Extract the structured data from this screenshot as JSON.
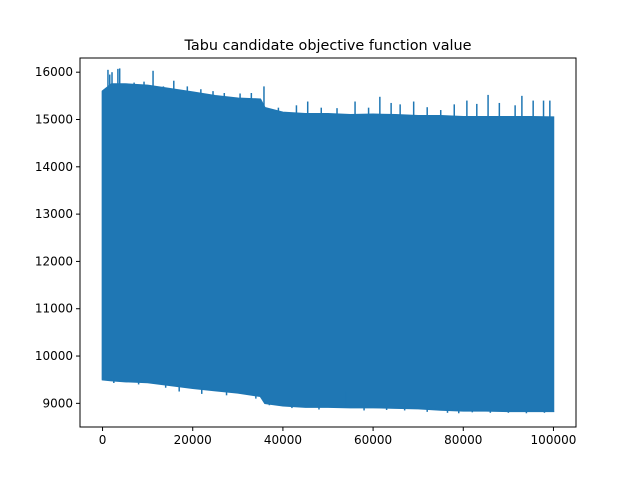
{
  "chart_data": {
    "type": "line",
    "title": "Tabu candidate objective function value",
    "xlabel": "",
    "ylabel": "",
    "xlim": [
      -5000,
      105000
    ],
    "ylim": [
      8500,
      16300
    ],
    "grid": false,
    "x_ticks": [
      0,
      20000,
      40000,
      60000,
      80000,
      100000
    ],
    "x_tick_labels": [
      "0",
      "20000",
      "40000",
      "60000",
      "80000",
      "100000"
    ],
    "y_ticks": [
      9000,
      10000,
      11000,
      12000,
      13000,
      14000,
      15000,
      16000
    ],
    "y_tick_labels": [
      "9000",
      "10000",
      "11000",
      "12000",
      "13000",
      "14000",
      "15000",
      "16000"
    ],
    "series": [
      {
        "color": "#1f77b4",
        "x": [
          0,
          2000,
          5000,
          10000,
          15000,
          20000,
          25000,
          30000,
          35000,
          36000,
          40000,
          45000,
          50000,
          55000,
          60000,
          65000,
          70000,
          75000,
          80000,
          85000,
          90000,
          95000,
          100000
        ],
        "upper": [
          15600,
          15750,
          15750,
          15720,
          15650,
          15580,
          15500,
          15450,
          15430,
          15250,
          15150,
          15120,
          15120,
          15100,
          15110,
          15100,
          15080,
          15080,
          15060,
          15060,
          15060,
          15060,
          15050
        ],
        "lower": [
          9500,
          9480,
          9460,
          9440,
          9380,
          9320,
          9270,
          9220,
          9150,
          9000,
          8950,
          8920,
          8920,
          8910,
          8910,
          8900,
          8890,
          8860,
          8840,
          8840,
          8830,
          8830,
          8830
        ],
        "upper_spikes": [
          [
            200,
            15600
          ],
          [
            800,
            15650
          ],
          [
            1200,
            16050
          ],
          [
            1600,
            15950
          ],
          [
            2100,
            16000
          ],
          [
            3400,
            16070
          ],
          [
            3800,
            16080
          ],
          [
            4500,
            15700
          ],
          [
            7000,
            15780
          ],
          [
            9200,
            15800
          ],
          [
            11200,
            16030
          ],
          [
            13500,
            15700
          ],
          [
            15800,
            15820
          ],
          [
            18800,
            15700
          ],
          [
            21800,
            15640
          ],
          [
            24500,
            15600
          ],
          [
            27000,
            15560
          ],
          [
            30500,
            15550
          ],
          [
            33000,
            15560
          ],
          [
            35800,
            15700
          ],
          [
            39000,
            15250
          ],
          [
            43000,
            15300
          ],
          [
            45500,
            15380
          ],
          [
            48500,
            15250
          ],
          [
            52000,
            15240
          ],
          [
            56000,
            15380
          ],
          [
            59000,
            15250
          ],
          [
            61500,
            15480
          ],
          [
            64000,
            15350
          ],
          [
            66000,
            15320
          ],
          [
            69000,
            15380
          ],
          [
            72000,
            15260
          ],
          [
            75000,
            15200
          ],
          [
            78000,
            15320
          ],
          [
            80800,
            15400
          ],
          [
            83000,
            15330
          ],
          [
            85500,
            15520
          ],
          [
            88000,
            15350
          ],
          [
            91500,
            15300
          ],
          [
            93000,
            15500
          ],
          [
            95500,
            15400
          ],
          [
            97800,
            15400
          ],
          [
            99200,
            15400
          ]
        ],
        "lower_spikes": [
          [
            500,
            9540
          ],
          [
            2500,
            9430
          ],
          [
            8000,
            9400
          ],
          [
            14000,
            9330
          ],
          [
            17000,
            9250
          ],
          [
            22000,
            9200
          ],
          [
            27500,
            9170
          ],
          [
            34000,
            9100
          ],
          [
            37000,
            8960
          ],
          [
            42000,
            8900
          ],
          [
            48000,
            8870
          ],
          [
            54000,
            9250
          ],
          [
            58000,
            8850
          ],
          [
            63000,
            8860
          ],
          [
            67000,
            8850
          ],
          [
            72000,
            8820
          ],
          [
            76500,
            8800
          ],
          [
            79000,
            8790
          ],
          [
            82000,
            8810
          ],
          [
            86000,
            8800
          ],
          [
            90000,
            8800
          ],
          [
            94000,
            8790
          ],
          [
            98000,
            8800
          ],
          [
            100000,
            8820
          ]
        ]
      }
    ]
  }
}
